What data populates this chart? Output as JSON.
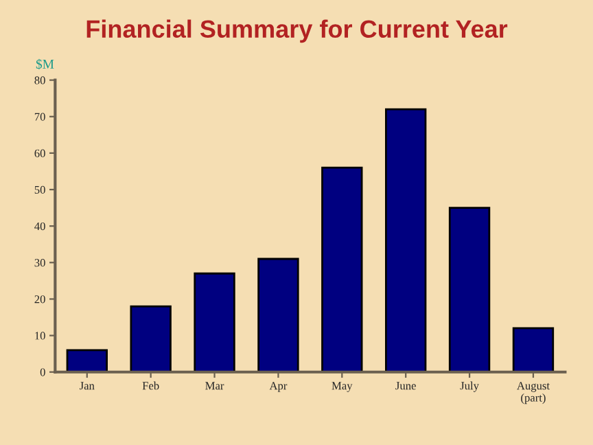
{
  "chart_data": {
    "type": "bar",
    "title": "Financial Summary for Current Year",
    "ylabel": "$M",
    "categories": [
      "Jan",
      "Feb",
      "Mar",
      "Apr",
      "May",
      "June",
      "July",
      "August\n(part)"
    ],
    "values": [
      6,
      18,
      27,
      31,
      56,
      72,
      45,
      12
    ],
    "color": "#000080",
    "ylim": [
      0,
      80
    ],
    "yticks": [
      0,
      10,
      20,
      30,
      40,
      50,
      60,
      70,
      80
    ]
  }
}
